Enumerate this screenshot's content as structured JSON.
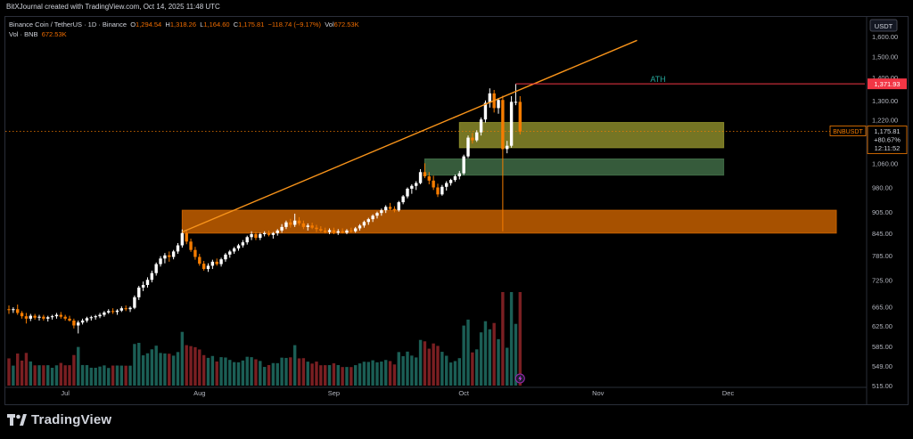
{
  "header": {
    "attribution": "BitXJournal created with TradingView.com, Oct 14, 2025 11:48 UTC"
  },
  "legend": {
    "symbol": "Binance Coin / TetherUS · 1D · Binance",
    "open_label": "O",
    "open": "1,294.54",
    "high_label": "H",
    "high": "1,318.26",
    "low_label": "L",
    "low": "1,164.60",
    "close_label": "C",
    "close": "1,175.81",
    "change": "−118.74 (−9.17%)",
    "vol_label": "Vol",
    "vol": "672.53K",
    "vol_series": "Vol · BNB",
    "vol_series_val": "672.53K"
  },
  "footer": {
    "brand": "TradingView",
    "logo_icon": "tradingview-logo-icon"
  },
  "colors": {
    "up": "#ffffff",
    "down": "#f57c00",
    "vol_up": "#1b5e55",
    "vol_down": "#7a1f22",
    "trendline": "#f7931a",
    "ath_line": "#f23645",
    "ath_text": "#26a69a",
    "zone_yellow": "#8a8a2a",
    "zone_green": "#3f6b45",
    "zone_orange": "#c45f00"
  },
  "chart_data": {
    "type": "candlestick",
    "title": "Binance Coin / TetherUS · 1D · Binance",
    "currency_label": "USDT",
    "y_ticks": [
      "1,600.00",
      "1,500.00",
      "1,400.00",
      "1,300.00",
      "1,220.00",
      "1,140.00",
      "1,060.00",
      "980.00",
      "905.00",
      "845.00",
      "785.00",
      "725.00",
      "665.00",
      "625.00",
      "585.00",
      "549.00",
      "515.00"
    ],
    "x_ticks": [
      "Jul",
      "Aug",
      "Sep",
      "Oct",
      "Nov",
      "Dec"
    ],
    "price_scale": "log",
    "ylim": [
      515,
      1700
    ],
    "last_price": {
      "symbol": "BNBUSDT",
      "price": "1,175.81",
      "change": "+80.67%",
      "countdown": "12:11:52",
      "value": 1175.81
    },
    "ath": {
      "label": "ATH",
      "price_label": "1,371.93",
      "value": 1371.93
    },
    "zones": [
      {
        "name": "resistance-zone",
        "low": 1115,
        "high": 1210,
        "from": "2025-09-30",
        "to": "2025-11-30"
      },
      {
        "name": "support-zone",
        "low": 1020,
        "high": 1075,
        "from": "2025-09-22",
        "to": "2025-11-30"
      },
      {
        "name": "demand-zone",
        "low": 845,
        "high": 910,
        "from": "2025-07-28",
        "to": "2025-12-26"
      }
    ],
    "trendline": {
      "from": {
        "date": "2025-07-28",
        "price": 848
      },
      "to": {
        "date": "2025-11-10",
        "price": 1580
      }
    },
    "candles": [
      [
        "2025-06-18",
        660,
        668,
        650,
        658
      ],
      [
        "2025-06-19",
        658,
        664,
        652,
        660
      ],
      [
        "2025-06-20",
        660,
        670,
        648,
        652
      ],
      [
        "2025-06-21",
        652,
        656,
        640,
        645
      ],
      [
        "2025-06-22",
        645,
        652,
        630,
        640
      ],
      [
        "2025-06-23",
        640,
        650,
        635,
        646
      ],
      [
        "2025-06-24",
        646,
        650,
        638,
        642
      ],
      [
        "2025-06-25",
        642,
        648,
        636,
        644
      ],
      [
        "2025-06-26",
        644,
        648,
        636,
        640
      ],
      [
        "2025-06-27",
        640,
        646,
        634,
        643
      ],
      [
        "2025-06-28",
        643,
        648,
        638,
        645
      ],
      [
        "2025-06-29",
        645,
        652,
        640,
        648
      ],
      [
        "2025-06-30",
        648,
        654,
        640,
        644
      ],
      [
        "2025-07-01",
        644,
        648,
        636,
        640
      ],
      [
        "2025-07-02",
        640,
        646,
        634,
        636
      ],
      [
        "2025-07-03",
        636,
        640,
        620,
        626
      ],
      [
        "2025-07-04",
        626,
        636,
        610,
        632
      ],
      [
        "2025-07-05",
        632,
        640,
        628,
        636
      ],
      [
        "2025-07-06",
        636,
        644,
        632,
        641
      ],
      [
        "2025-07-07",
        641,
        646,
        636,
        643
      ],
      [
        "2025-07-08",
        643,
        648,
        638,
        645
      ],
      [
        "2025-07-09",
        645,
        652,
        641,
        648
      ],
      [
        "2025-07-10",
        648,
        656,
        644,
        653
      ],
      [
        "2025-07-11",
        653,
        660,
        650,
        656
      ],
      [
        "2025-07-12",
        656,
        662,
        650,
        654
      ],
      [
        "2025-07-13",
        654,
        660,
        648,
        657
      ],
      [
        "2025-07-14",
        657,
        666,
        654,
        662
      ],
      [
        "2025-07-15",
        662,
        668,
        656,
        660
      ],
      [
        "2025-07-16",
        660,
        666,
        654,
        663
      ],
      [
        "2025-07-17",
        663,
        690,
        660,
        686
      ],
      [
        "2025-07-18",
        686,
        712,
        680,
        708
      ],
      [
        "2025-07-19",
        708,
        722,
        700,
        714
      ],
      [
        "2025-07-20",
        714,
        732,
        708,
        726
      ],
      [
        "2025-07-21",
        726,
        748,
        720,
        742
      ],
      [
        "2025-07-22",
        742,
        768,
        736,
        764
      ],
      [
        "2025-07-23",
        764,
        784,
        758,
        778
      ],
      [
        "2025-07-24",
        778,
        792,
        766,
        786
      ],
      [
        "2025-07-25",
        786,
        796,
        770,
        782
      ],
      [
        "2025-07-26",
        782,
        800,
        776,
        796
      ],
      [
        "2025-07-27",
        796,
        818,
        790,
        812
      ],
      [
        "2025-07-28",
        812,
        855,
        806,
        845
      ],
      [
        "2025-07-29",
        845,
        852,
        815,
        822
      ],
      [
        "2025-07-30",
        822,
        830,
        795,
        800
      ],
      [
        "2025-07-31",
        800,
        808,
        775,
        782
      ],
      [
        "2025-08-01",
        782,
        790,
        760,
        765
      ],
      [
        "2025-08-02",
        765,
        772,
        748,
        752
      ],
      [
        "2025-08-03",
        752,
        766,
        745,
        760
      ],
      [
        "2025-08-04",
        760,
        775,
        752,
        770
      ],
      [
        "2025-08-05",
        770,
        778,
        760,
        764
      ],
      [
        "2025-08-06",
        764,
        780,
        758,
        776
      ],
      [
        "2025-08-07",
        776,
        792,
        770,
        788
      ],
      [
        "2025-08-08",
        788,
        800,
        780,
        796
      ],
      [
        "2025-08-09",
        796,
        808,
        790,
        804
      ],
      [
        "2025-08-10",
        804,
        816,
        798,
        812
      ],
      [
        "2025-08-11",
        812,
        826,
        806,
        820
      ],
      [
        "2025-08-12",
        820,
        838,
        814,
        834
      ],
      [
        "2025-08-13",
        834,
        850,
        826,
        842
      ],
      [
        "2025-08-14",
        842,
        848,
        826,
        832
      ],
      [
        "2025-08-15",
        832,
        846,
        826,
        842
      ],
      [
        "2025-08-16",
        842,
        850,
        836,
        845
      ],
      [
        "2025-08-17",
        845,
        852,
        836,
        840
      ],
      [
        "2025-08-18",
        840,
        848,
        830,
        845
      ],
      [
        "2025-08-19",
        845,
        856,
        838,
        852
      ],
      [
        "2025-08-20",
        852,
        870,
        846,
        862
      ],
      [
        "2025-08-21",
        862,
        880,
        856,
        875
      ],
      [
        "2025-08-22",
        875,
        885,
        860,
        868
      ],
      [
        "2025-08-23",
        868,
        900,
        862,
        880
      ],
      [
        "2025-08-24",
        880,
        890,
        866,
        872
      ],
      [
        "2025-08-25",
        872,
        880,
        856,
        862
      ],
      [
        "2025-08-26",
        862,
        872,
        852,
        866
      ],
      [
        "2025-08-27",
        866,
        874,
        856,
        860
      ],
      [
        "2025-08-28",
        860,
        868,
        848,
        856
      ],
      [
        "2025-08-29",
        856,
        864,
        848,
        852
      ],
      [
        "2025-08-30",
        852,
        860,
        844,
        848
      ],
      [
        "2025-08-31",
        848,
        858,
        842,
        853
      ],
      [
        "2025-09-01",
        853,
        860,
        842,
        846
      ],
      [
        "2025-09-02",
        846,
        856,
        840,
        850
      ],
      [
        "2025-09-03",
        850,
        858,
        844,
        846
      ],
      [
        "2025-09-04",
        846,
        856,
        842,
        852
      ],
      [
        "2025-09-05",
        852,
        860,
        846,
        850
      ],
      [
        "2025-09-06",
        850,
        862,
        846,
        858
      ],
      [
        "2025-09-07",
        858,
        870,
        852,
        866
      ],
      [
        "2025-09-08",
        866,
        880,
        860,
        876
      ],
      [
        "2025-09-09",
        876,
        888,
        868,
        884
      ],
      [
        "2025-09-10",
        884,
        898,
        876,
        894
      ],
      [
        "2025-09-11",
        894,
        906,
        886,
        902
      ],
      [
        "2025-09-12",
        902,
        915,
        894,
        910
      ],
      [
        "2025-09-13",
        910,
        925,
        902,
        920
      ],
      [
        "2025-09-14",
        920,
        932,
        910,
        914
      ],
      [
        "2025-09-15",
        914,
        922,
        904,
        910
      ],
      [
        "2025-09-16",
        910,
        938,
        906,
        934
      ],
      [
        "2025-09-17",
        934,
        956,
        928,
        952
      ],
      [
        "2025-09-18",
        952,
        980,
        946,
        976
      ],
      [
        "2025-09-19",
        976,
        990,
        960,
        985
      ],
      [
        "2025-09-20",
        985,
        1000,
        972,
        994
      ],
      [
        "2025-09-21",
        994,
        1040,
        990,
        1030
      ],
      [
        "2025-09-22",
        1030,
        1060,
        1010,
        1016
      ],
      [
        "2025-09-23",
        1016,
        1030,
        990,
        1002
      ],
      [
        "2025-09-24",
        1002,
        1018,
        972,
        980
      ],
      [
        "2025-09-25",
        980,
        992,
        950,
        958
      ],
      [
        "2025-09-26",
        958,
        988,
        954,
        982
      ],
      [
        "2025-09-27",
        982,
        1000,
        970,
        994
      ],
      [
        "2025-09-28",
        994,
        1008,
        986,
        1004
      ],
      [
        "2025-09-29",
        1004,
        1022,
        998,
        1016
      ],
      [
        "2025-09-30",
        1016,
        1034,
        1006,
        1026
      ],
      [
        "2025-10-01",
        1026,
        1090,
        1020,
        1084
      ],
      [
        "2025-10-02",
        1084,
        1160,
        1078,
        1152
      ],
      [
        "2025-10-03",
        1152,
        1170,
        1130,
        1142
      ],
      [
        "2025-10-04",
        1142,
        1180,
        1136,
        1172
      ],
      [
        "2025-10-05",
        1172,
        1230,
        1160,
        1222
      ],
      [
        "2025-10-06",
        1222,
        1300,
        1210,
        1290
      ],
      [
        "2025-10-07",
        1290,
        1352,
        1270,
        1330
      ],
      [
        "2025-10-08",
        1330,
        1345,
        1250,
        1268
      ],
      [
        "2025-10-09",
        1268,
        1310,
        1245,
        1302
      ],
      [
        "2025-10-10",
        1302,
        1320,
        850,
        1110
      ],
      [
        "2025-10-11",
        1110,
        1140,
        1095,
        1122
      ],
      [
        "2025-10-12",
        1122,
        1318,
        1115,
        1294
      ],
      [
        "2025-10-13",
        1294,
        1371,
        1280,
        1294
      ],
      [
        "2025-10-14",
        1294,
        1318,
        1164,
        1175
      ]
    ],
    "volume_series": "Vol · BNB"
  }
}
